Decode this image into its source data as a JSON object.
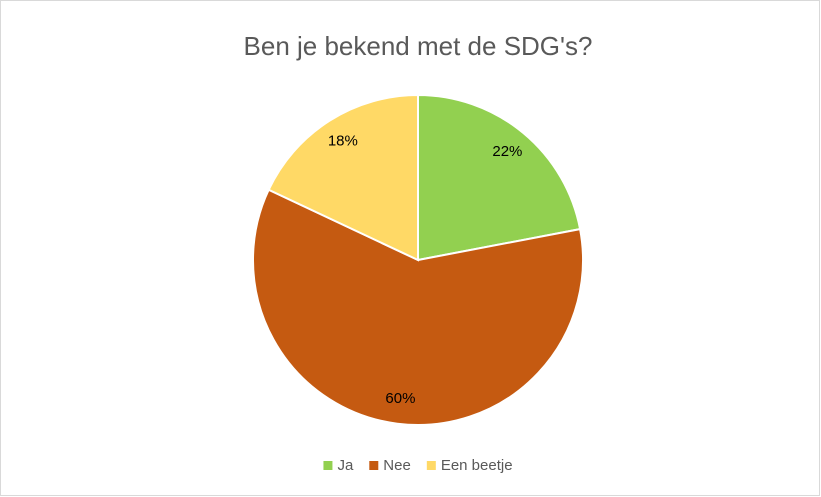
{
  "chart_data": {
    "type": "pie",
    "title": "Ben je bekend met de SDG's?",
    "categories": [
      "Ja",
      "Nee",
      "Een beetje"
    ],
    "values": [
      22,
      60,
      18
    ],
    "value_labels": [
      "22%",
      "60%",
      "18%"
    ],
    "colors": [
      "#92d050",
      "#c55a11",
      "#ffd966"
    ],
    "legend": "bottom"
  }
}
